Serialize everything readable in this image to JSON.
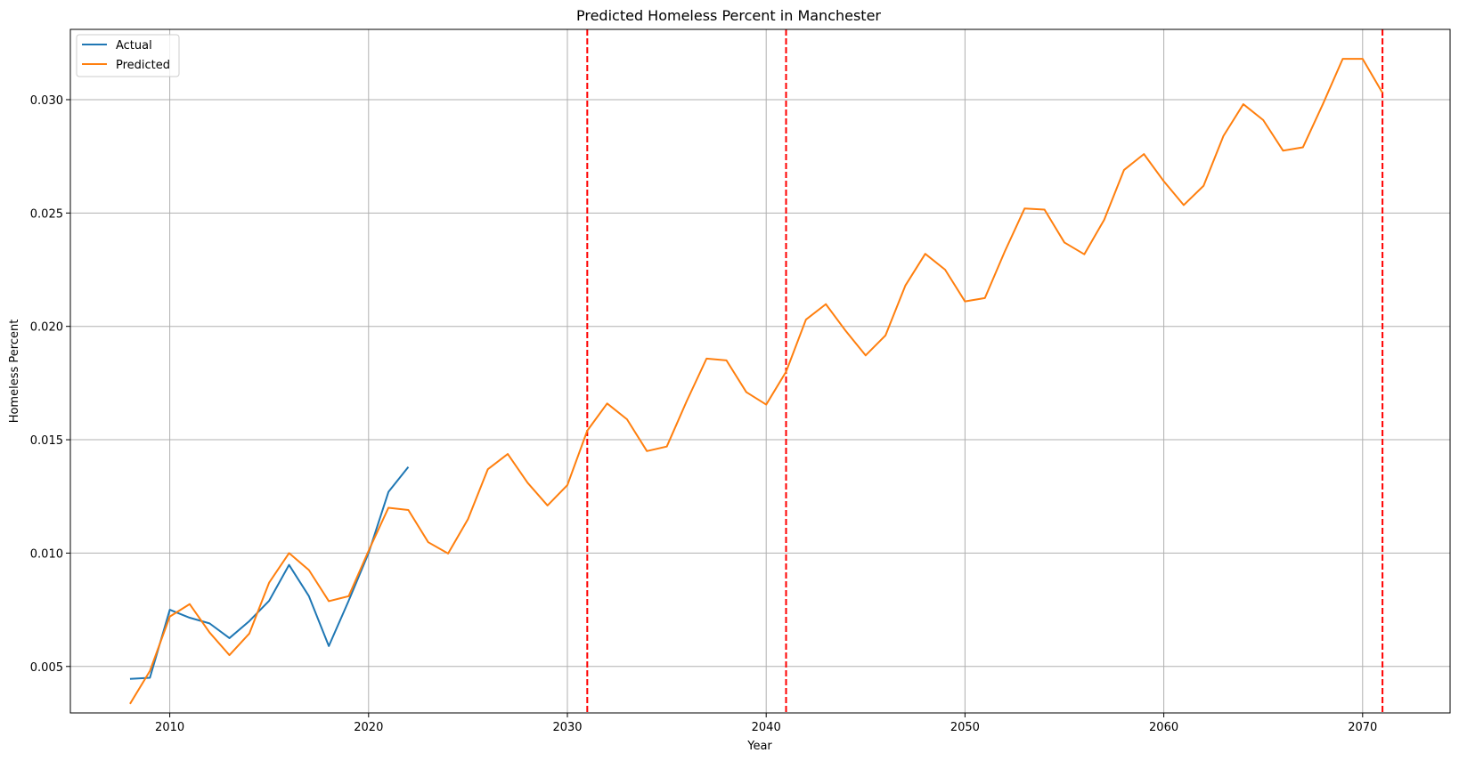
{
  "chart_data": {
    "type": "line",
    "title": "Predicted Homeless Percent in Manchester",
    "xlabel": "Year",
    "ylabel": "Homeless Percent",
    "xlim": [
      2005,
      2074.4
    ],
    "ylim": [
      0.00295,
      0.0331
    ],
    "xticks": [
      2010,
      2020,
      2030,
      2040,
      2050,
      2060,
      2070
    ],
    "yticks": [
      0.005,
      0.01,
      0.015,
      0.02,
      0.025,
      0.03
    ],
    "ytick_labels": [
      "0.005",
      "0.010",
      "0.015",
      "0.020",
      "0.025",
      "0.030"
    ],
    "grid": true,
    "legend_position": "upper-left",
    "series": [
      {
        "name": "Actual",
        "color": "#1f77b4",
        "x": [
          2008,
          2009,
          2010,
          2011,
          2012,
          2013,
          2014,
          2015,
          2016,
          2017,
          2018,
          2019,
          2020,
          2021,
          2022
        ],
        "values": [
          0.00445,
          0.0045,
          0.0075,
          0.00715,
          0.0069,
          0.00625,
          0.007,
          0.0079,
          0.00948,
          0.0081,
          0.0059,
          0.0079,
          0.01,
          0.0127,
          0.0138
        ]
      },
      {
        "name": "Predicted",
        "color": "#ff7f0e",
        "x": [
          2008,
          2009,
          2010,
          2011,
          2012,
          2013,
          2014,
          2015,
          2016,
          2017,
          2018,
          2019,
          2020,
          2021,
          2022,
          2023,
          2024,
          2025,
          2026,
          2027,
          2028,
          2029,
          2030,
          2031,
          2032,
          2033,
          2034,
          2035,
          2036,
          2037,
          2038,
          2039,
          2040,
          2041,
          2042,
          2043,
          2044,
          2045,
          2046,
          2047,
          2048,
          2049,
          2050,
          2051,
          2052,
          2053,
          2054,
          2055,
          2056,
          2057,
          2058,
          2059,
          2060,
          2061,
          2062,
          2063,
          2064,
          2065,
          2066,
          2067,
          2068,
          2069,
          2070,
          2071
        ],
        "values": [
          0.00335,
          0.0048,
          0.0072,
          0.00775,
          0.0065,
          0.0055,
          0.00645,
          0.0087,
          0.01,
          0.00925,
          0.00788,
          0.0081,
          0.0101,
          0.012,
          0.0119,
          0.01048,
          0.00998,
          0.0115,
          0.0137,
          0.01437,
          0.0131,
          0.0121,
          0.013,
          0.0154,
          0.0166,
          0.0159,
          0.0145,
          0.0147,
          0.0167,
          0.01858,
          0.0185,
          0.0171,
          0.01655,
          0.018,
          0.0203,
          0.02098,
          0.0198,
          0.01872,
          0.0196,
          0.0218,
          0.0232,
          0.0225,
          0.0211,
          0.02125,
          0.0233,
          0.0252,
          0.02515,
          0.0237,
          0.02318,
          0.0247,
          0.0269,
          0.0276,
          0.0264,
          0.02535,
          0.0262,
          0.0284,
          0.0298,
          0.0291,
          0.02775,
          0.0279,
          0.0298,
          0.0318,
          0.0318,
          0.0303
        ]
      }
    ],
    "vlines": {
      "color": "#ff0000",
      "style": "dashed",
      "x": [
        2031,
        2041,
        2071
      ]
    }
  }
}
